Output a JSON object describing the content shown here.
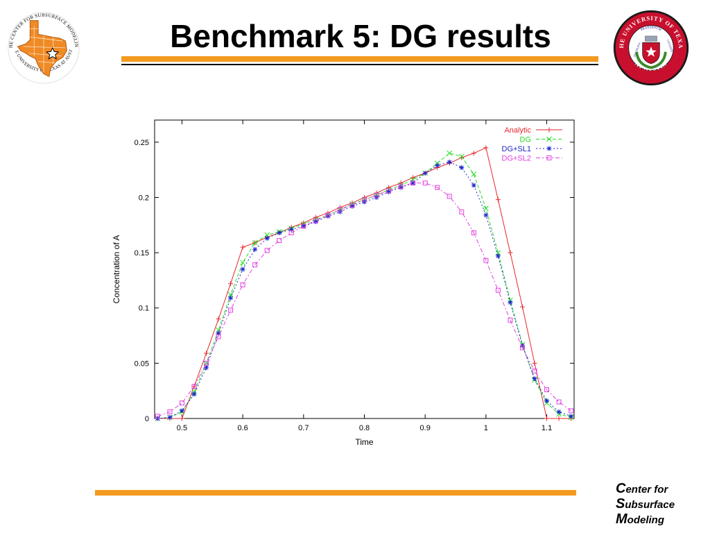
{
  "slide": {
    "title": "Benchmark 5: DG results",
    "footer_brand_lines": [
      {
        "cap": "C",
        "rest": "enter for"
      },
      {
        "cap": "S",
        "rest": "ubsurface"
      },
      {
        "cap": "M",
        "rest": "odeling"
      }
    ],
    "accent_color": "#f29a1e",
    "left_logo": {
      "icon": "texas-map-star-logo",
      "arc_text_top": "THE CENTER FOR SUBSURFACE MODELING",
      "arc_text_bottom": "THE UNIVERSITY OF TEXAS AT AUSTIN",
      "colors": {
        "map": "#f08a24",
        "ring": "#ffffff",
        "text": "#000000"
      }
    },
    "right_logo": {
      "icon": "ut-austin-seal",
      "text_top": "THE UNIVERSITY OF TEXAS",
      "text_bottom": "AT AUSTIN",
      "inner_top": "PRAESIDIUM",
      "inner_left": "DISCIPLINA",
      "inner_right": "CIVITATIS",
      "colors": {
        "outer": "#c8102e",
        "inner": "#ffffff",
        "shield": "#c8102e",
        "wreath": "#3a8a2a"
      }
    }
  },
  "chart_data": {
    "type": "line",
    "title": "",
    "xlabel": "Time",
    "ylabel": "Concentration of A",
    "xlim": [
      0.455,
      1.145
    ],
    "ylim": [
      0,
      0.27
    ],
    "xticks": [
      0.5,
      0.6,
      0.7,
      0.8,
      0.9,
      1.0,
      1.1
    ],
    "xtick_labels": [
      "0.5",
      "0.6",
      "0.7",
      "0.8",
      "0.9",
      "1",
      "1.1"
    ],
    "yticks": [
      0,
      0.05,
      0.1,
      0.15,
      0.2,
      0.25
    ],
    "ytick_labels": [
      "0",
      "0.05",
      "0.1",
      "0.15",
      "0.2",
      "0.25"
    ],
    "grid": false,
    "legend_position": "top-right",
    "series": [
      {
        "name": "Analytic",
        "color": "#e8262b",
        "marker": "plus",
        "dash": "",
        "x": [
          0.46,
          0.48,
          0.5,
          0.52,
          0.54,
          0.56,
          0.58,
          0.6,
          0.62,
          0.64,
          0.66,
          0.68,
          0.7,
          0.72,
          0.74,
          0.76,
          0.78,
          0.8,
          0.82,
          0.84,
          0.86,
          0.88,
          0.9,
          0.92,
          0.94,
          0.96,
          0.98,
          1.0,
          1.02,
          1.04,
          1.06,
          1.08,
          1.1,
          1.12,
          1.14
        ],
        "y": [
          0,
          0,
          0,
          0.029,
          0.059,
          0.09,
          0.122,
          0.155,
          0.159,
          0.164,
          0.168,
          0.173,
          0.177,
          0.182,
          0.186,
          0.191,
          0.195,
          0.2,
          0.204,
          0.209,
          0.213,
          0.218,
          0.222,
          0.227,
          0.231,
          0.236,
          0.24,
          0.245,
          0.198,
          0.15,
          0.101,
          0.05,
          0,
          0,
          0
        ]
      },
      {
        "name": "DG",
        "color": "#22dd22",
        "marker": "cross",
        "dash": "5,3",
        "x": [
          0.46,
          0.48,
          0.5,
          0.52,
          0.54,
          0.56,
          0.58,
          0.6,
          0.62,
          0.64,
          0.66,
          0.68,
          0.7,
          0.72,
          0.74,
          0.76,
          0.78,
          0.8,
          0.82,
          0.84,
          0.86,
          0.88,
          0.9,
          0.92,
          0.94,
          0.96,
          0.98,
          1.0,
          1.02,
          1.04,
          1.06,
          1.08,
          1.1,
          1.12,
          1.14
        ],
        "y": [
          0,
          0.001,
          0.006,
          0.024,
          0.05,
          0.08,
          0.112,
          0.141,
          0.159,
          0.166,
          0.169,
          0.172,
          0.176,
          0.18,
          0.184,
          0.189,
          0.194,
          0.198,
          0.202,
          0.207,
          0.211,
          0.216,
          0.222,
          0.231,
          0.24,
          0.237,
          0.221,
          0.19,
          0.15,
          0.107,
          0.067,
          0.035,
          0.014,
          0.004,
          0.001
        ]
      },
      {
        "name": "DG+SL1",
        "color": "#1a22cc",
        "marker": "star",
        "dash": "2,3",
        "x": [
          0.46,
          0.48,
          0.5,
          0.52,
          0.54,
          0.56,
          0.58,
          0.6,
          0.62,
          0.64,
          0.66,
          0.68,
          0.7,
          0.72,
          0.74,
          0.76,
          0.78,
          0.8,
          0.82,
          0.84,
          0.86,
          0.88,
          0.9,
          0.92,
          0.94,
          0.96,
          0.98,
          1.0,
          1.02,
          1.04,
          1.06,
          1.08,
          1.1,
          1.12,
          1.14
        ],
        "y": [
          0,
          0.001,
          0.007,
          0.022,
          0.046,
          0.077,
          0.109,
          0.135,
          0.153,
          0.163,
          0.168,
          0.171,
          0.174,
          0.178,
          0.183,
          0.187,
          0.192,
          0.196,
          0.2,
          0.205,
          0.209,
          0.213,
          0.222,
          0.229,
          0.232,
          0.227,
          0.211,
          0.184,
          0.147,
          0.105,
          0.066,
          0.036,
          0.016,
          0.006,
          0.002
        ]
      },
      {
        "name": "DG+SL2",
        "color": "#e23ee2",
        "marker": "square",
        "dash": "6,3,2,3",
        "x": [
          0.46,
          0.48,
          0.5,
          0.52,
          0.54,
          0.56,
          0.58,
          0.6,
          0.62,
          0.64,
          0.66,
          0.68,
          0.7,
          0.72,
          0.74,
          0.76,
          0.78,
          0.8,
          0.82,
          0.84,
          0.86,
          0.88,
          0.9,
          0.92,
          0.94,
          0.96,
          0.98,
          1.0,
          1.02,
          1.04,
          1.06,
          1.08,
          1.1,
          1.12,
          1.14
        ],
        "y": [
          0.002,
          0.006,
          0.014,
          0.029,
          0.05,
          0.074,
          0.098,
          0.121,
          0.139,
          0.152,
          0.161,
          0.168,
          0.174,
          0.179,
          0.184,
          0.189,
          0.193,
          0.198,
          0.202,
          0.206,
          0.21,
          0.213,
          0.213,
          0.209,
          0.201,
          0.187,
          0.168,
          0.143,
          0.116,
          0.089,
          0.064,
          0.043,
          0.026,
          0.015,
          0.007
        ]
      }
    ]
  }
}
